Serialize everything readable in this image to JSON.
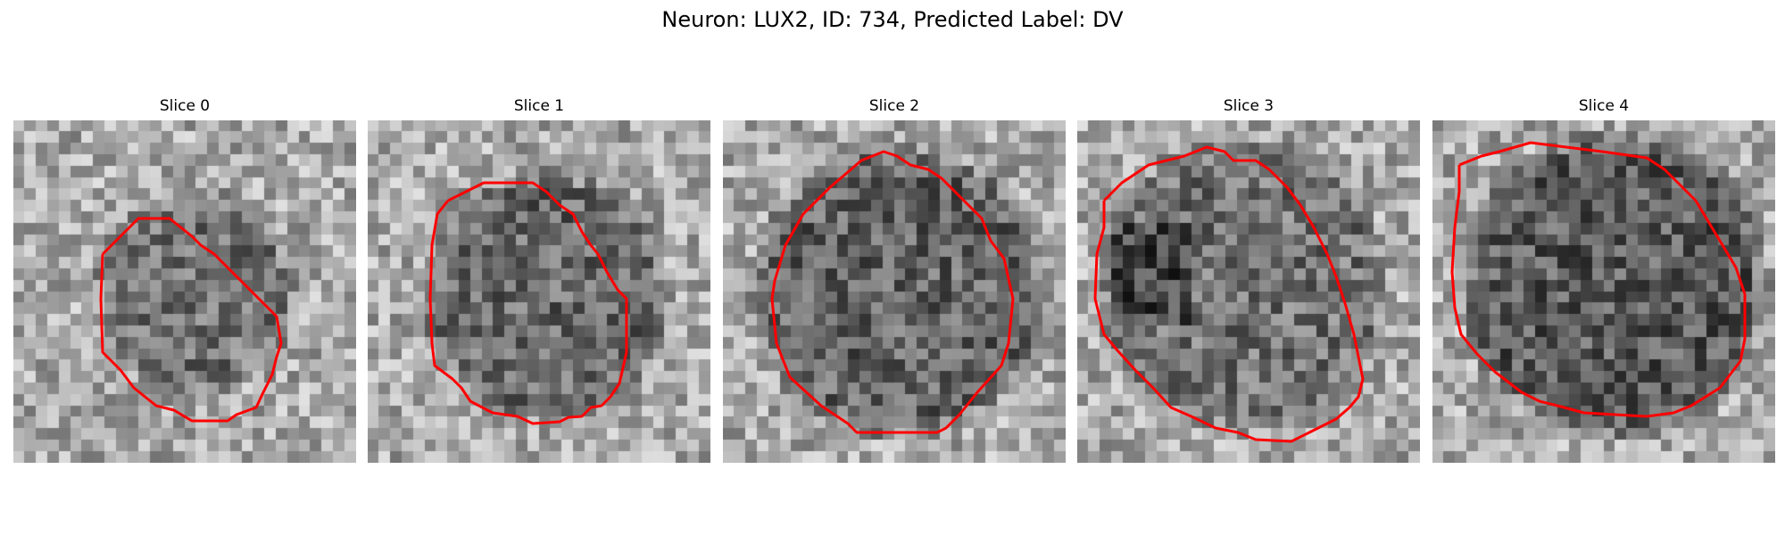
{
  "figure": {
    "title": "Neuron: LUX2, ID: 734, Predicted Label: DV",
    "contour_color": "#ff0000"
  },
  "slices": [
    {
      "label": "Slice 0"
    },
    {
      "label": "Slice 1"
    },
    {
      "label": "Slice 2"
    },
    {
      "label": "Slice 3"
    },
    {
      "label": "Slice 4"
    }
  ]
}
